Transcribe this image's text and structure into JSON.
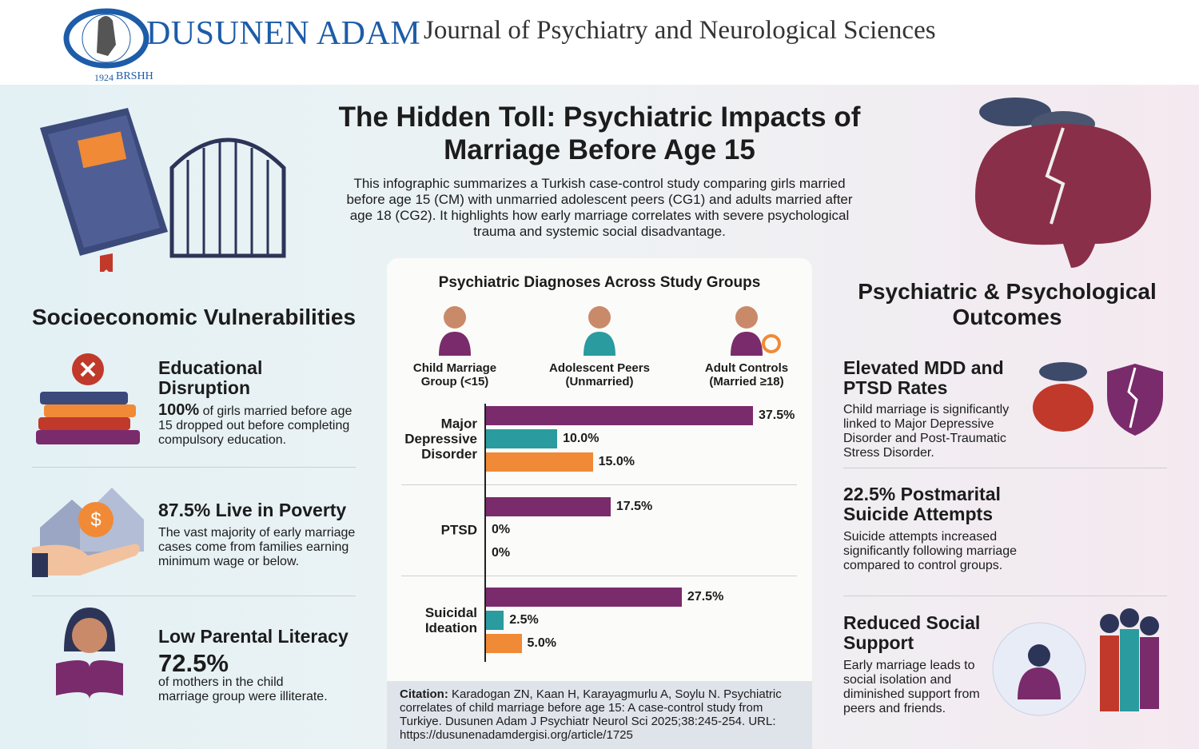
{
  "header": {
    "logo_name": "DUSUNEN ADAM",
    "logo_year": "1924",
    "logo_org": "BRSHH",
    "journal": "Journal of Psychiatry and Neurological Sciences"
  },
  "title": "The Hidden Toll: Psychiatric Impacts of Marriage Before Age 15",
  "intro": "This infographic summarizes a Turkish case-control study comparing girls married before age 15 (CM) with unmarried adolescent peers (CG1) and adults married after age 18 (CG2). It highlights how early marriage correlates with severe psychological trauma and systemic social disadvantage.",
  "left": {
    "heading": "Socioeconomic Vulnerabilities",
    "items": [
      {
        "heading": "Educational Disruption",
        "stat": "100%",
        "text": "of girls married before age 15 dropped out before completing compulsory education."
      },
      {
        "heading": "87.5% Live in Poverty",
        "text": "The vast majority of early marriage cases come from families earning minimum wage or below."
      },
      {
        "heading": "Low Parental Literacy",
        "stat": "72.5%",
        "text": "of mothers in the child marriage group were illiterate."
      }
    ]
  },
  "chart_data": {
    "type": "bar",
    "orientation": "horizontal",
    "title": "Psychiatric Diagnoses Across Study Groups",
    "categories": [
      "Major Depressive Disorder",
      "PTSD",
      "Suicidal Ideation"
    ],
    "series": [
      {
        "name": "Child Marriage Group (<15)",
        "color": "#7a2b6c",
        "values": [
          37.5,
          17.5,
          27.5
        ],
        "value_labels": [
          "37.5%",
          "17.5%",
          "27.5%"
        ]
      },
      {
        "name": "Adolescent Peers (Unmarried)",
        "color": "#2a9b9e",
        "values": [
          10.0,
          0,
          2.5
        ],
        "value_labels": [
          "10.0%",
          "0%",
          "2.5%"
        ]
      },
      {
        "name": "Adult Controls (Married ≥18)",
        "color": "#f08a36",
        "values": [
          15.0,
          0,
          5.0
        ],
        "value_labels": [
          "15.0%",
          "0%",
          "5.0%"
        ]
      }
    ]
  },
  "citation": {
    "label": "Citation:",
    "text": "Karadogan ZN, Kaan H, Karayagmurlu A, Soylu N. Psychiatric correlates of child marriage before age 15: A case-control study from Turkiye. Dusunen Adam J Psychiatr Neurol Sci 2025;38:245-254. URL: https://dusunenadamdergisi.org/article/1725"
  },
  "right": {
    "heading": "Psychiatric & Psychological Outcomes",
    "items": [
      {
        "heading": "Elevated MDD and PTSD Rates",
        "text": "Child marriage is significantly linked to Major Depressive Disorder and Post-Traumatic Stress Disorder."
      },
      {
        "heading": "22.5% Postmarital Suicide Attempts",
        "text": "Suicide attempts increased significantly following marriage compared to control groups."
      },
      {
        "heading": "Reduced Social Support",
        "text": "Early marriage leads to social isolation and diminished support from peers and friends."
      }
    ]
  }
}
